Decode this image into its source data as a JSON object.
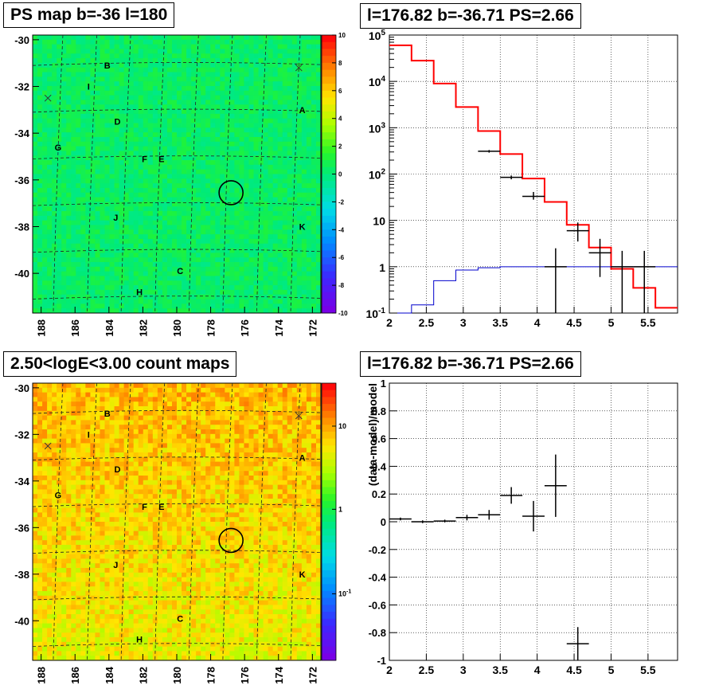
{
  "panels": {
    "tl_title": "PS map b=-36 l=180",
    "tr_title": "l=176.82 b=-36.71 PS=2.66",
    "bl_title": "2.50<logE<3.00 count maps",
    "br_title": "l=176.82 b=-36.71 PS=2.66"
  },
  "chart_data": [
    {
      "type": "heatmap",
      "title": "PS map b=-36 l=180",
      "x_ticks": [
        "188",
        "186",
        "184",
        "182",
        "180",
        "178",
        "176",
        "174",
        "172"
      ],
      "y_ticks": [
        "-30",
        "-32",
        "-34",
        "-36",
        "-38",
        "-40"
      ],
      "xlim": [
        188.5,
        171.5
      ],
      "ylim": [
        -41.7,
        -29.8
      ],
      "colorbar": {
        "min": -10,
        "max": 10,
        "ticks": [
          "10",
          "8",
          "6",
          "4",
          "2",
          "0",
          "-2",
          "-4",
          "-6",
          "-8",
          "-10"
        ]
      },
      "dominant_value": 0,
      "source_labels": [
        {
          "name": "B",
          "l": 184.1,
          "b": -31.1
        },
        {
          "name": "I",
          "l": 185.2,
          "b": -32.0
        },
        {
          "name": "A",
          "l": 172.6,
          "b": -33.0
        },
        {
          "name": "D",
          "l": 183.5,
          "b": -33.5
        },
        {
          "name": "G",
          "l": 187.0,
          "b": -34.6
        },
        {
          "name": "F",
          "l": 181.9,
          "b": -35.1
        },
        {
          "name": "E",
          "l": 180.9,
          "b": -35.1
        },
        {
          "name": "J",
          "l": 183.6,
          "b": -37.6
        },
        {
          "name": "K",
          "l": 172.6,
          "b": -38.0
        },
        {
          "name": "C",
          "l": 179.8,
          "b": -39.9
        },
        {
          "name": "H",
          "l": 182.2,
          "b": -40.8
        }
      ],
      "cross_markers": [
        {
          "l": 187.6,
          "b": -32.5
        },
        {
          "l": 172.8,
          "b": -31.2
        }
      ],
      "circle": {
        "l": 176.8,
        "b": -36.55
      }
    },
    {
      "type": "line",
      "title": "l=176.82 b=-36.71 PS=2.66",
      "x_ticks": [
        "2",
        "2.5",
        "3",
        "3.5",
        "4",
        "4.5",
        "5",
        "5.5"
      ],
      "y_ticks": [
        "10^-1",
        "1",
        "10",
        "10^2",
        "10^3",
        "10^4",
        "10^5"
      ],
      "xlim": [
        2,
        5.9
      ],
      "ylim": [
        0.1,
        100000
      ],
      "y_scale": "log",
      "grid": true,
      "series": [
        {
          "color": "#ff0000",
          "step_x": [
            2,
            2.3,
            2.6,
            2.9,
            3.2,
            3.5,
            3.8,
            4.1,
            4.4,
            4.7,
            5.0,
            5.3,
            5.6,
            5.9
          ],
          "values": [
            60000,
            28000,
            9000,
            2800,
            850,
            270,
            80,
            25,
            8,
            2.6,
            0.9,
            0.35,
            0.13
          ]
        },
        {
          "color": "#0000cc",
          "step_x": [
            2,
            2.3,
            2.6,
            2.9,
            3.2,
            3.5,
            3.8,
            4.1,
            4.4,
            4.7,
            5.0,
            5.3,
            5.6,
            5.9
          ],
          "values": [
            0.1,
            0.15,
            0.5,
            0.85,
            0.95,
            1.0,
            1.0,
            1.0,
            1.0,
            1.0,
            1.0,
            1.0,
            1.0
          ]
        },
        {
          "color": "#000000",
          "x": [
            3.35,
            3.65,
            3.95,
            4.25,
            4.55,
            4.85,
            5.15,
            5.45
          ],
          "values": [
            310,
            85,
            33,
            1.0,
            6,
            2,
            1.0,
            1.0
          ],
          "err_low": [
            20,
            8,
            5,
            0.95,
            2.5,
            1.4,
            0.9,
            0.9
          ],
          "err_high": [
            20,
            8,
            8,
            1.5,
            3,
            2,
            1.2,
            1.2
          ],
          "xerr": 0.15
        }
      ]
    },
    {
      "type": "heatmap",
      "title": "2.50<logE<3.00 count maps",
      "x_ticks": [
        "188",
        "186",
        "184",
        "182",
        "180",
        "178",
        "176",
        "174",
        "172"
      ],
      "y_ticks": [
        "-30",
        "-32",
        "-34",
        "-36",
        "-38",
        "-40"
      ],
      "xlim": [
        188.5,
        171.5
      ],
      "ylim": [
        -41.7,
        -29.8
      ],
      "colorbar": {
        "scale": "log",
        "ticks": [
          "10",
          "1",
          "10^-1"
        ]
      },
      "source_labels": [
        {
          "name": "B",
          "l": 184.1,
          "b": -31.1
        },
        {
          "name": "I",
          "l": 185.2,
          "b": -32.0
        },
        {
          "name": "A",
          "l": 172.6,
          "b": -33.0
        },
        {
          "name": "D",
          "l": 183.5,
          "b": -33.5
        },
        {
          "name": "G",
          "l": 187.0,
          "b": -34.6
        },
        {
          "name": "F",
          "l": 181.9,
          "b": -35.1
        },
        {
          "name": "E",
          "l": 180.9,
          "b": -35.1
        },
        {
          "name": "J",
          "l": 183.6,
          "b": -37.6
        },
        {
          "name": "K",
          "l": 172.6,
          "b": -38.0
        },
        {
          "name": "C",
          "l": 179.8,
          "b": -39.9
        },
        {
          "name": "H",
          "l": 182.2,
          "b": -40.8
        }
      ],
      "cross_markers": [
        {
          "l": 187.6,
          "b": -32.5
        },
        {
          "l": 172.8,
          "b": -31.2
        }
      ],
      "circle": {
        "l": 176.8,
        "b": -36.55
      }
    },
    {
      "type": "scatter",
      "title": "l=176.82 b=-36.71 PS=2.66",
      "ylabel": "(data-model)/model",
      "x_ticks": [
        "2",
        "2.5",
        "3",
        "3.5",
        "4",
        "4.5",
        "5",
        "5.5"
      ],
      "y_ticks": [
        "-1",
        "-0.8",
        "-0.6",
        "-0.4",
        "-0.2",
        "0",
        "0.2",
        "0.4",
        "0.6",
        "0.8",
        "1"
      ],
      "xlim": [
        2,
        5.9
      ],
      "ylim": [
        -1,
        1
      ],
      "grid": true,
      "points": [
        {
          "x": 2.15,
          "y": 0.02,
          "xerr": 0.15,
          "yerr": 0.01
        },
        {
          "x": 2.45,
          "y": 0.0,
          "xerr": 0.15,
          "yerr": 0.01
        },
        {
          "x": 2.75,
          "y": 0.005,
          "xerr": 0.15,
          "yerr": 0.01
        },
        {
          "x": 3.05,
          "y": 0.03,
          "xerr": 0.15,
          "yerr": 0.02
        },
        {
          "x": 3.35,
          "y": 0.05,
          "xerr": 0.15,
          "yerr": 0.035
        },
        {
          "x": 3.65,
          "y": 0.19,
          "xerr": 0.15,
          "yerr": 0.06
        },
        {
          "x": 3.95,
          "y": 0.04,
          "xerr": 0.15,
          "yerr": 0.11
        },
        {
          "x": 4.25,
          "y": 0.26,
          "xerr": 0.15,
          "yerr": 0.225
        },
        {
          "x": 4.55,
          "y": -0.88,
          "xerr": 0.15,
          "yerr": 0.12
        }
      ]
    }
  ]
}
